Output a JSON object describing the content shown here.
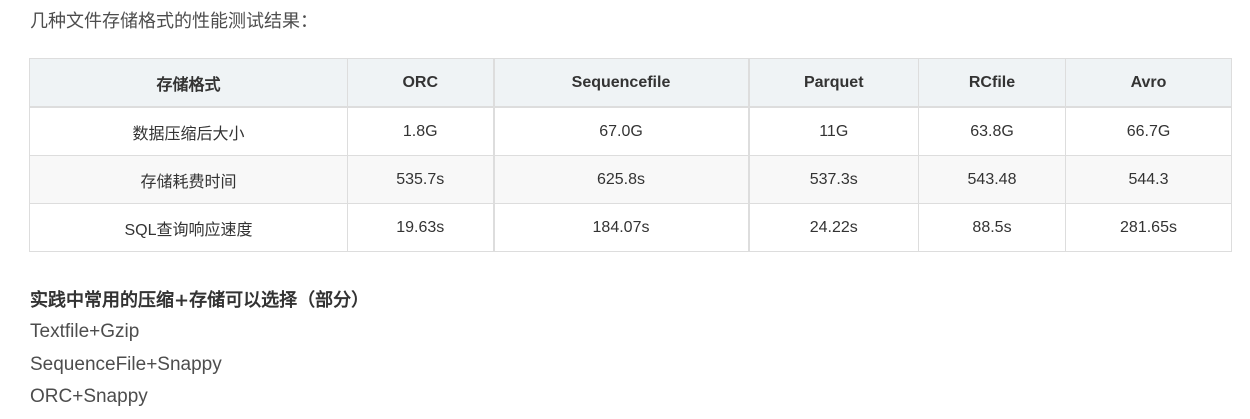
{
  "intro": "几种文件存储格式的性能测试结果：",
  "table": {
    "headers": [
      "存储格式",
      "ORC",
      "Sequencefile",
      "Parquet",
      "RCfile",
      "Avro"
    ],
    "rows": [
      [
        "数据压缩后大小",
        "1.8G",
        "67.0G",
        "11G",
        "63.8G",
        "66.7G"
      ],
      [
        "存储耗费时间",
        "535.7s",
        "625.8s",
        "537.3s",
        "543.48",
        "544.3"
      ],
      [
        "SQL查询响应速度",
        "19.63s",
        "184.07s",
        "24.22s",
        "88.5s",
        "281.65s"
      ]
    ]
  },
  "recommend": {
    "heading": "实践中常用的压缩+存储可以选择（部分）",
    "items": [
      "Textfile+Gzip",
      "SequenceFile+Snappy",
      "ORC+Snappy"
    ]
  }
}
